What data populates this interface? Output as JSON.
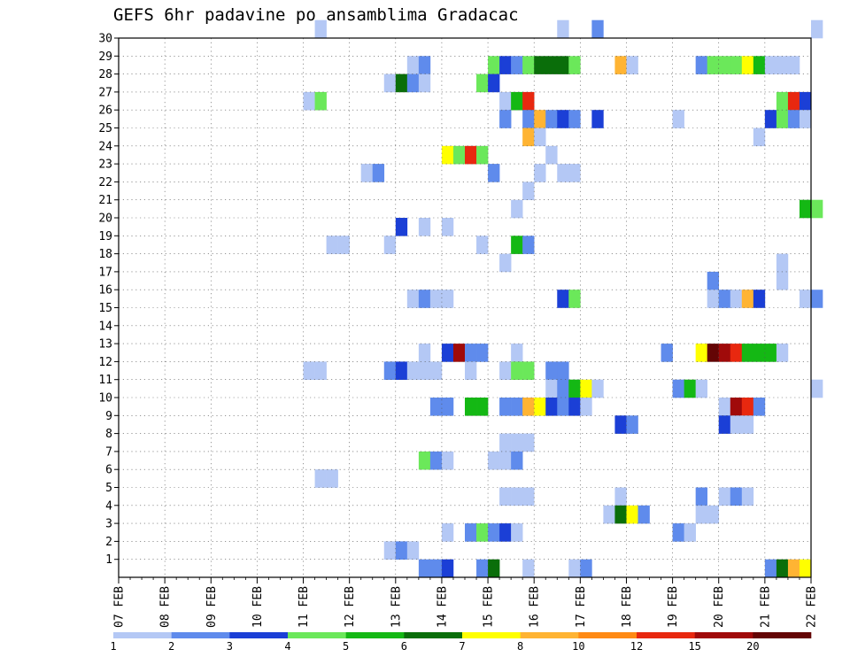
{
  "chart_data": {
    "type": "heatmap",
    "title": "GEFS 6hr padavine po ansamblima Gradacac",
    "x_ticks": [
      "07 FEB",
      "08 FEB",
      "09 FEB",
      "10 FEB",
      "11 FEB",
      "12 FEB",
      "13 FEB",
      "14 FEB",
      "15 FEB",
      "16 FEB",
      "17 FEB",
      "18 FEB",
      "19 FEB",
      "20 FEB",
      "21 FEB",
      "22 FEB"
    ],
    "y_ticks": [
      "1",
      "2",
      "3",
      "4",
      "5",
      "6",
      "7",
      "8",
      "9",
      "10",
      "11",
      "12",
      "13",
      "14",
      "15",
      "16",
      "17",
      "18",
      "19",
      "20",
      "21",
      "22",
      "23",
      "24",
      "25",
      "26",
      "27",
      "28",
      "29",
      "30"
    ],
    "y_range": [
      0,
      30
    ],
    "x_steps_per_day": 4,
    "grid": true,
    "colorbar": {
      "labels": [
        "1",
        "2",
        "3",
        "4",
        "5",
        "6",
        "7",
        "8",
        "10",
        "12",
        "15",
        "20"
      ],
      "colors": [
        "#b4c8f5",
        "#5f8bec",
        "#1b3fd6",
        "#6be85a",
        "#14b814",
        "#0a6e0a",
        "#ffff00",
        "#ffb433",
        "#ff8a14",
        "#e8280f",
        "#a00a0a",
        "#640505"
      ]
    },
    "cells": [
      [
        30,
        "11:06",
        0
      ],
      [
        30,
        "16:12",
        0
      ],
      [
        30,
        "17:06",
        1
      ],
      [
        30,
        "22:00",
        0
      ],
      [
        28,
        "13:06",
        0
      ],
      [
        28,
        "13:12",
        1
      ],
      [
        28,
        "15:00",
        3
      ],
      [
        28,
        "15:06",
        2
      ],
      [
        28,
        "15:12",
        1
      ],
      [
        28,
        "15:18",
        3
      ],
      [
        28,
        "16:00",
        5
      ],
      [
        28,
        "16:06",
        5
      ],
      [
        28,
        "16:12",
        5
      ],
      [
        28,
        "16:18",
        3
      ],
      [
        28,
        "17:18",
        7
      ],
      [
        28,
        "18:00",
        0
      ],
      [
        28,
        "19:12",
        1
      ],
      [
        28,
        "19:18",
        3
      ],
      [
        28,
        "20:00",
        3
      ],
      [
        28,
        "20:06",
        3
      ],
      [
        28,
        "20:12",
        6
      ],
      [
        28,
        "20:18",
        4
      ],
      [
        28,
        "21:00",
        0
      ],
      [
        28,
        "21:06",
        0
      ],
      [
        28,
        "21:12",
        0
      ],
      [
        27,
        "12:18",
        0
      ],
      [
        27,
        "13:00",
        5
      ],
      [
        27,
        "13:06",
        1
      ],
      [
        27,
        "13:12",
        0
      ],
      [
        27,
        "14:18",
        3
      ],
      [
        27,
        "15:00",
        2
      ],
      [
        26,
        "11:00",
        0
      ],
      [
        26,
        "11:06",
        3
      ],
      [
        26,
        "15:06",
        0
      ],
      [
        26,
        "15:12",
        4
      ],
      [
        26,
        "15:18",
        9
      ],
      [
        26,
        "21:06",
        3
      ],
      [
        26,
        "21:12",
        9
      ],
      [
        26,
        "21:18",
        2
      ],
      [
        25,
        "15:06",
        1
      ],
      [
        25,
        "15:18",
        1
      ],
      [
        25,
        "16:00",
        7
      ],
      [
        25,
        "16:06",
        1
      ],
      [
        25,
        "16:12",
        2
      ],
      [
        25,
        "16:18",
        1
      ],
      [
        25,
        "17:06",
        2
      ],
      [
        25,
        "19:00",
        0
      ],
      [
        25,
        "21:00",
        2
      ],
      [
        25,
        "21:06",
        3
      ],
      [
        25,
        "21:12",
        1
      ],
      [
        25,
        "21:18",
        0
      ],
      [
        24,
        "15:18",
        7
      ],
      [
        24,
        "16:00",
        0
      ],
      [
        24,
        "20:18",
        0
      ],
      [
        23,
        "14:00",
        6
      ],
      [
        23,
        "14:06",
        3
      ],
      [
        23,
        "14:12",
        9
      ],
      [
        23,
        "14:18",
        3
      ],
      [
        23,
        "16:06",
        0
      ],
      [
        22,
        "12:06",
        0
      ],
      [
        22,
        "12:12",
        1
      ],
      [
        22,
        "15:00",
        1
      ],
      [
        22,
        "16:00",
        0
      ],
      [
        22,
        "16:12",
        0
      ],
      [
        22,
        "16:18",
        0
      ],
      [
        21,
        "15:18",
        0
      ],
      [
        20,
        "15:12",
        0
      ],
      [
        20,
        "21:18",
        4
      ],
      [
        20,
        "22:00",
        3
      ],
      [
        19,
        "13:00",
        2
      ],
      [
        19,
        "13:12",
        0
      ],
      [
        19,
        "14:00",
        0
      ],
      [
        18,
        "11:12",
        0
      ],
      [
        18,
        "11:18",
        0
      ],
      [
        18,
        "12:18",
        0
      ],
      [
        18,
        "14:18",
        0
      ],
      [
        18,
        "15:12",
        4
      ],
      [
        18,
        "15:18",
        1
      ],
      [
        17,
        "15:06",
        0
      ],
      [
        17,
        "21:06",
        0
      ],
      [
        16,
        "19:18",
        1
      ],
      [
        16,
        "21:06",
        0
      ],
      [
        15,
        "13:06",
        0
      ],
      [
        15,
        "13:12",
        1
      ],
      [
        15,
        "13:18",
        0
      ],
      [
        15,
        "14:00",
        0
      ],
      [
        15,
        "16:12",
        2
      ],
      [
        15,
        "16:18",
        3
      ],
      [
        15,
        "19:18",
        0
      ],
      [
        15,
        "20:00",
        1
      ],
      [
        15,
        "20:06",
        0
      ],
      [
        15,
        "20:12",
        7
      ],
      [
        15,
        "20:18",
        2
      ],
      [
        15,
        "21:18",
        0
      ],
      [
        15,
        "22:00",
        1
      ],
      [
        12,
        "13:12",
        0
      ],
      [
        12,
        "14:00",
        2
      ],
      [
        12,
        "14:06",
        10
      ],
      [
        12,
        "14:12",
        1
      ],
      [
        12,
        "14:18",
        1
      ],
      [
        12,
        "15:12",
        0
      ],
      [
        12,
        "18:18",
        1
      ],
      [
        12,
        "19:12",
        6
      ],
      [
        12,
        "19:18",
        11
      ],
      [
        12,
        "20:00",
        10
      ],
      [
        12,
        "20:06",
        9
      ],
      [
        12,
        "20:12",
        4
      ],
      [
        12,
        "20:18",
        4
      ],
      [
        12,
        "21:00",
        4
      ],
      [
        12,
        "21:06",
        0
      ],
      [
        11,
        "11:00",
        0
      ],
      [
        11,
        "11:06",
        0
      ],
      [
        11,
        "12:18",
        1
      ],
      [
        11,
        "13:00",
        2
      ],
      [
        11,
        "13:06",
        0
      ],
      [
        11,
        "13:12",
        0
      ],
      [
        11,
        "13:18",
        0
      ],
      [
        11,
        "14:12",
        0
      ],
      [
        11,
        "15:06",
        0
      ],
      [
        11,
        "15:12",
        3
      ],
      [
        11,
        "15:18",
        3
      ],
      [
        11,
        "16:06",
        1
      ],
      [
        11,
        "16:12",
        1
      ],
      [
        10,
        "16:06",
        0
      ],
      [
        10,
        "16:12",
        1
      ],
      [
        10,
        "16:18",
        4
      ],
      [
        10,
        "17:00",
        6
      ],
      [
        10,
        "17:06",
        0
      ],
      [
        10,
        "19:00",
        1
      ],
      [
        10,
        "19:06",
        4
      ],
      [
        10,
        "19:12",
        0
      ],
      [
        10,
        "22:00",
        0
      ],
      [
        9,
        "13:18",
        1
      ],
      [
        9,
        "14:00",
        1
      ],
      [
        9,
        "14:12",
        4
      ],
      [
        9,
        "14:18",
        4
      ],
      [
        9,
        "15:06",
        1
      ],
      [
        9,
        "15:12",
        1
      ],
      [
        9,
        "15:18",
        7
      ],
      [
        9,
        "16:00",
        6
      ],
      [
        9,
        "16:06",
        2
      ],
      [
        9,
        "16:12",
        1
      ],
      [
        9,
        "16:18",
        2
      ],
      [
        9,
        "17:00",
        0
      ],
      [
        9,
        "20:00",
        0
      ],
      [
        9,
        "20:06",
        10
      ],
      [
        9,
        "20:12",
        9
      ],
      [
        9,
        "20:18",
        1
      ],
      [
        8,
        "17:18",
        2
      ],
      [
        8,
        "18:00",
        1
      ],
      [
        8,
        "20:00",
        2
      ],
      [
        8,
        "20:06",
        0
      ],
      [
        8,
        "20:12",
        0
      ],
      [
        7,
        "15:06",
        0
      ],
      [
        7,
        "15:12",
        0
      ],
      [
        7,
        "15:18",
        0
      ],
      [
        6,
        "13:12",
        3
      ],
      [
        6,
        "13:18",
        1
      ],
      [
        6,
        "14:00",
        0
      ],
      [
        6,
        "15:00",
        0
      ],
      [
        6,
        "15:06",
        0
      ],
      [
        6,
        "15:12",
        1
      ],
      [
        5,
        "11:06",
        0
      ],
      [
        5,
        "11:12",
        0
      ],
      [
        4,
        "15:06",
        0
      ],
      [
        4,
        "15:12",
        0
      ],
      [
        4,
        "15:18",
        0
      ],
      [
        4,
        "17:18",
        0
      ],
      [
        4,
        "19:12",
        1
      ],
      [
        4,
        "20:00",
        0
      ],
      [
        4,
        "20:06",
        1
      ],
      [
        4,
        "20:12",
        0
      ],
      [
        3,
        "17:12",
        0
      ],
      [
        3,
        "17:18",
        5
      ],
      [
        3,
        "18:00",
        6
      ],
      [
        3,
        "18:06",
        1
      ],
      [
        3,
        "19:12",
        0
      ],
      [
        3,
        "19:18",
        0
      ],
      [
        2,
        "14:00",
        0
      ],
      [
        2,
        "14:12",
        1
      ],
      [
        2,
        "14:18",
        3
      ],
      [
        2,
        "15:00",
        1
      ],
      [
        2,
        "15:06",
        2
      ],
      [
        2,
        "15:12",
        0
      ],
      [
        2,
        "19:00",
        1
      ],
      [
        2,
        "19:06",
        0
      ],
      [
        1,
        "12:18",
        0
      ],
      [
        1,
        "13:00",
        1
      ],
      [
        1,
        "13:06",
        0
      ],
      [
        0,
        "13:12",
        1
      ],
      [
        0,
        "13:18",
        1
      ],
      [
        0,
        "14:00",
        2
      ],
      [
        0,
        "14:18",
        1
      ],
      [
        0,
        "15:00",
        5
      ],
      [
        0,
        "15:18",
        0
      ],
      [
        0,
        "16:18",
        0
      ],
      [
        0,
        "17:00",
        1
      ],
      [
        0,
        "21:00",
        1
      ],
      [
        0,
        "21:06",
        5
      ],
      [
        0,
        "21:12",
        7
      ],
      [
        0,
        "21:18",
        6
      ]
    ]
  }
}
